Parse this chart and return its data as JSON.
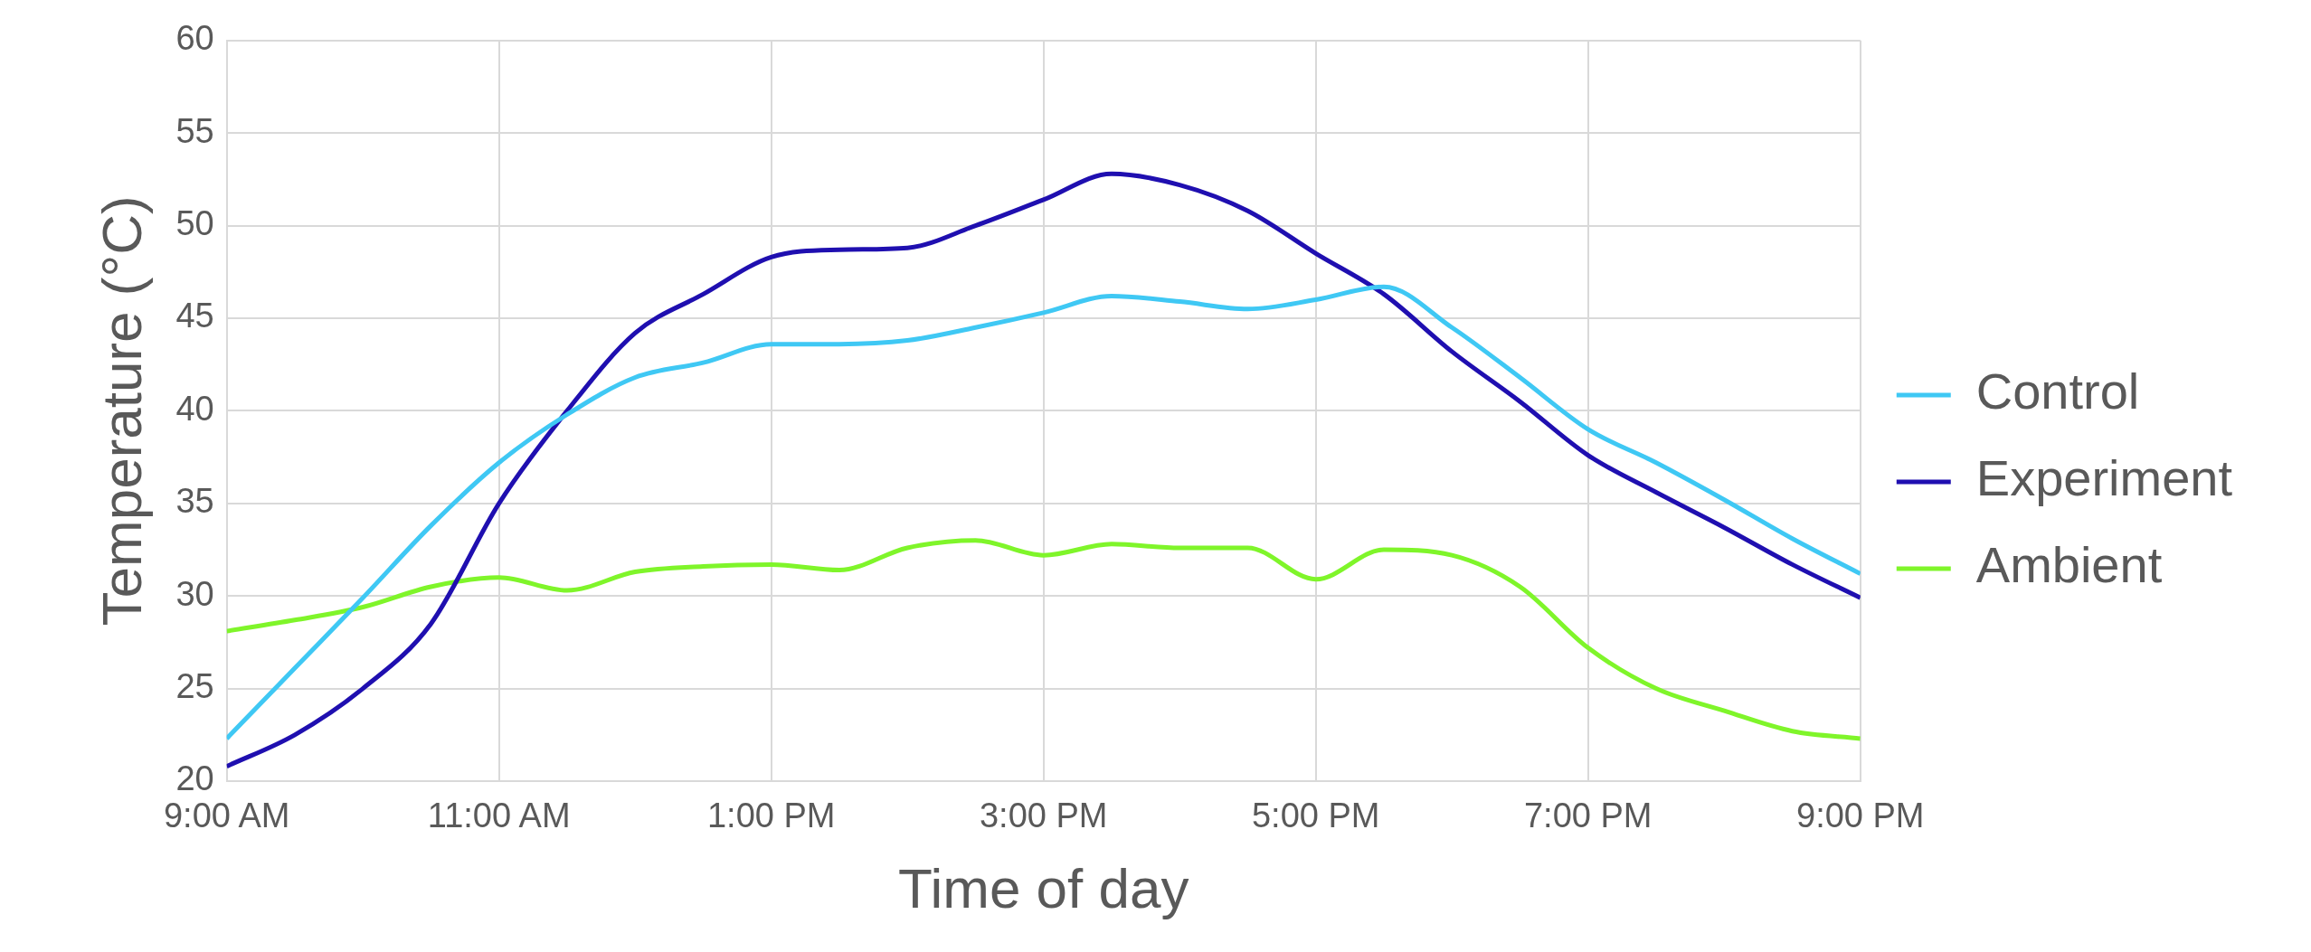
{
  "chart_data": {
    "type": "line",
    "xlabel": "Time of day",
    "ylabel": "Temperature (°C)",
    "x": [
      9,
      9.5,
      10,
      10.5,
      11,
      11.5,
      12,
      12.5,
      13,
      13.5,
      14,
      14.5,
      15,
      15.5,
      16,
      16.5,
      17,
      17.5,
      18,
      18.5,
      19,
      19.5,
      20,
      20.5,
      21
    ],
    "series": [
      {
        "name": "Control",
        "color": "#3fc8f4",
        "values": [
          22.3,
          26.1,
          29.9,
          33.8,
          37.2,
          39.8,
          41.8,
          42.6,
          43.6,
          43.6,
          43.8,
          44.5,
          45.3,
          46.2,
          45.9,
          45.5,
          46.0,
          46.7,
          44.5,
          41.8,
          39.0,
          37.2,
          35.2,
          33.1,
          31.2
        ]
      },
      {
        "name": "Experiment",
        "color": "#1f0fb0",
        "values": [
          20.8,
          22.5,
          25.0,
          28.5,
          35.0,
          40.0,
          44.2,
          46.3,
          48.3,
          48.7,
          48.8,
          50.0,
          51.4,
          52.8,
          52.2,
          50.8,
          48.5,
          46.3,
          43.2,
          40.5,
          37.6,
          35.6,
          33.7,
          31.7,
          29.9
        ]
      },
      {
        "name": "Ambient",
        "color": "#7ff52a",
        "values": [
          28.1,
          28.7,
          29.4,
          30.5,
          31.0,
          30.3,
          31.3,
          31.6,
          31.7,
          31.4,
          32.6,
          33.0,
          32.2,
          32.8,
          32.6,
          32.6,
          30.9,
          32.5,
          32.2,
          30.5,
          27.2,
          25.0,
          23.8,
          22.7,
          22.3
        ]
      }
    ],
    "xlim": [
      9,
      21
    ],
    "xticks": [
      {
        "value": 9,
        "label": "9:00 AM"
      },
      {
        "value": 11,
        "label": "11:00 AM"
      },
      {
        "value": 13,
        "label": "1:00 PM"
      },
      {
        "value": 15,
        "label": "3:00 PM"
      },
      {
        "value": 17,
        "label": "5:00 PM"
      },
      {
        "value": 19,
        "label": "7:00 PM"
      },
      {
        "value": 21,
        "label": "9:00 PM"
      }
    ],
    "ylim": [
      20,
      60
    ],
    "yticks": [
      20,
      25,
      30,
      35,
      40,
      45,
      50,
      55,
      60
    ],
    "grid": true,
    "legend": "right",
    "marker": "none",
    "line_style": "solid"
  }
}
